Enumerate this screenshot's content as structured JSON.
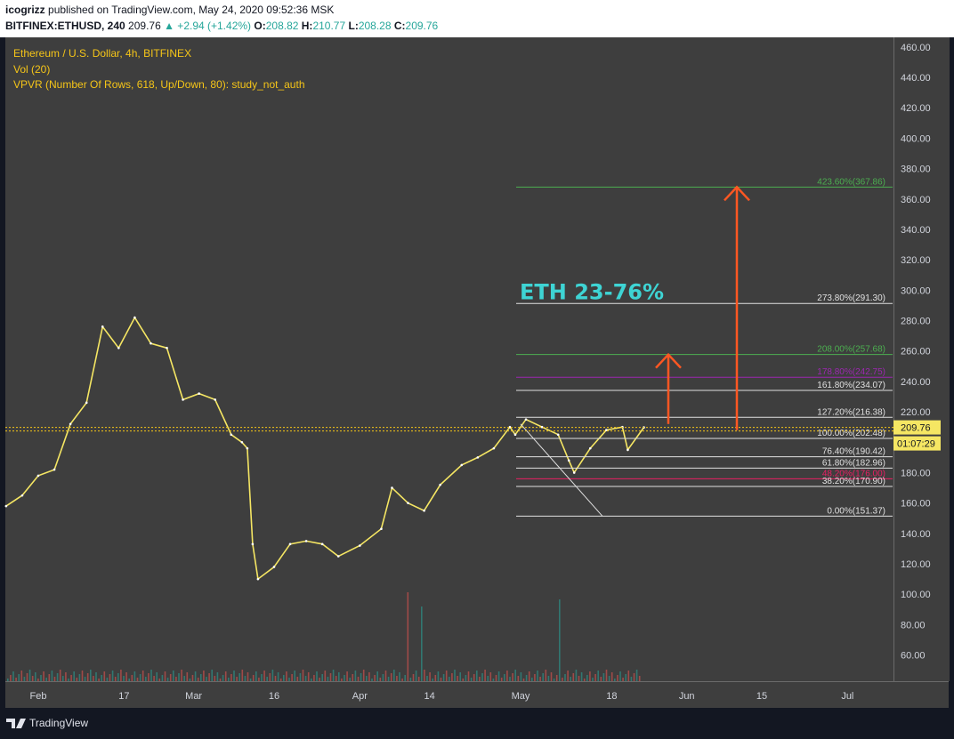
{
  "header": {
    "author": "icogrizz",
    "published_text": "published on TradingView.com, May 24, 2020 09:52:36 MSK",
    "symbol": "BITFINEX:ETHUSD, 240",
    "last": "209.76",
    "change": "▲ +2.94 (+1.42%)",
    "o_label": "O:",
    "o_value": "208.82",
    "h_label": "H:",
    "h_value": "210.77",
    "l_label": "L:",
    "l_value": "208.28",
    "c_label": "C:",
    "c_value": "209.76"
  },
  "legend": {
    "title": "Ethereum / U.S. Dollar, 4h, BITFINEX",
    "vol": "Vol (20)",
    "vpvr": "VPVR (Number Of Rows, 618, Up/Down, 80): study_not_auth"
  },
  "chart_data": {
    "type": "line",
    "title": "Ethereum / U.S. Dollar, 4h, BITFINEX",
    "ylim": [
      45,
      465
    ],
    "y_ticks": [
      "460.00",
      "440.00",
      "420.00",
      "400.00",
      "380.00",
      "360.00",
      "340.00",
      "320.00",
      "300.00",
      "280.00",
      "260.00",
      "240.00",
      "220.00",
      "200.00",
      "180.00",
      "160.00",
      "140.00",
      "120.00",
      "100.00",
      "80.00",
      "60.00"
    ],
    "x_ticks": [
      "Feb",
      "17",
      "Mar",
      "16",
      "Apr",
      "14",
      "May",
      "18",
      "Jun",
      "15",
      "Jul"
    ],
    "x": [
      "2020-01-26",
      "2020-01-29",
      "2020-02-01",
      "2020-02-04",
      "2020-02-07",
      "2020-02-10",
      "2020-02-13",
      "2020-02-16",
      "2020-02-19",
      "2020-02-22",
      "2020-02-25",
      "2020-02-28",
      "2020-03-02",
      "2020-03-05",
      "2020-03-08",
      "2020-03-10",
      "2020-03-11",
      "2020-03-12",
      "2020-03-13",
      "2020-03-16",
      "2020-03-19",
      "2020-03-22",
      "2020-03-25",
      "2020-03-28",
      "2020-04-01",
      "2020-04-05",
      "2020-04-07",
      "2020-04-10",
      "2020-04-13",
      "2020-04-16",
      "2020-04-20",
      "2020-04-23",
      "2020-04-26",
      "2020-04-29",
      "2020-04-30",
      "2020-05-02",
      "2020-05-05",
      "2020-05-08",
      "2020-05-10",
      "2020-05-11",
      "2020-05-14",
      "2020-05-17",
      "2020-05-20",
      "2020-05-21",
      "2020-05-24"
    ],
    "close": [
      158,
      165,
      178,
      182,
      212,
      226,
      276,
      262,
      282,
      265,
      262,
      228,
      232,
      228,
      205,
      200,
      196,
      133,
      110,
      118,
      133,
      135,
      133,
      125,
      132,
      143,
      170,
      160,
      155,
      172,
      185,
      190,
      196,
      210,
      205,
      215,
      210,
      205,
      188,
      180,
      196,
      208,
      210,
      195,
      209.76
    ],
    "current_price": "209.76",
    "countdown": "01:07:29",
    "annotation": "ETH 23-76%",
    "fib_levels": [
      {
        "label": "423.60%(367.86)",
        "value": 367.86,
        "color": "#4caf50"
      },
      {
        "label": "273.80%(291.30)",
        "value": 291.3,
        "color": "#e0e0e0"
      },
      {
        "label": "208.00%(257.68)",
        "value": 257.68,
        "color": "#4caf50"
      },
      {
        "label": "178.80%(242.75)",
        "value": 242.75,
        "color": "#9c27b0"
      },
      {
        "label": "161.80%(234.07)",
        "value": 234.07,
        "color": "#e0e0e0"
      },
      {
        "label": "127.20%(216.38)",
        "value": 216.38,
        "color": "#e0e0e0"
      },
      {
        "label": "100.00%(202.48)",
        "value": 202.48,
        "color": "#e0e0e0"
      },
      {
        "label": "76.40%(190.42)",
        "value": 190.42,
        "color": "#e0e0e0"
      },
      {
        "label": "61.80%(182.96)",
        "value": 182.96,
        "color": "#e0e0e0"
      },
      {
        "label": "48.20%(176.00)",
        "value": 176.0,
        "color": "#e91e63"
      },
      {
        "label": "38.20%(170.90)",
        "value": 170.9,
        "color": "#e0e0e0"
      },
      {
        "label": "0.00%(151.37)",
        "value": 151.37,
        "color": "#e0e0e0"
      }
    ],
    "colors": {
      "price": "#f5e663",
      "annotation": "#3ed4d4",
      "arrow": "#ff5722",
      "volume": "#ef5350"
    }
  },
  "footer": {
    "brand": "TradingView"
  }
}
